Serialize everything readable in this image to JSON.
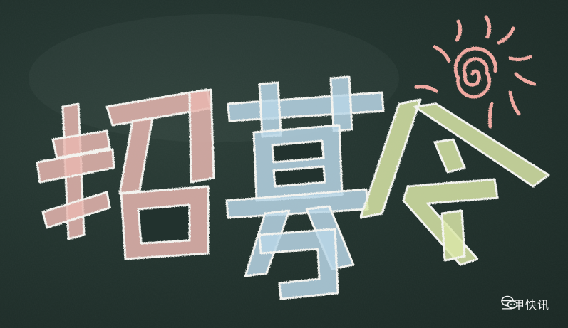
{
  "headline": {
    "text": "招募令",
    "characters": [
      "招",
      "募",
      "令"
    ],
    "colors": {
      "zhao": "#e8b7b0",
      "mu": "#b9d6e6",
      "ling": "#d9e6a8",
      "sun": "#f0a9a1"
    }
  },
  "watermark": {
    "icon": "wechat-icon",
    "label": "三甲快讯"
  },
  "colors": {
    "board": "#22332e",
    "chalk_outline": "#f3f3ef"
  }
}
